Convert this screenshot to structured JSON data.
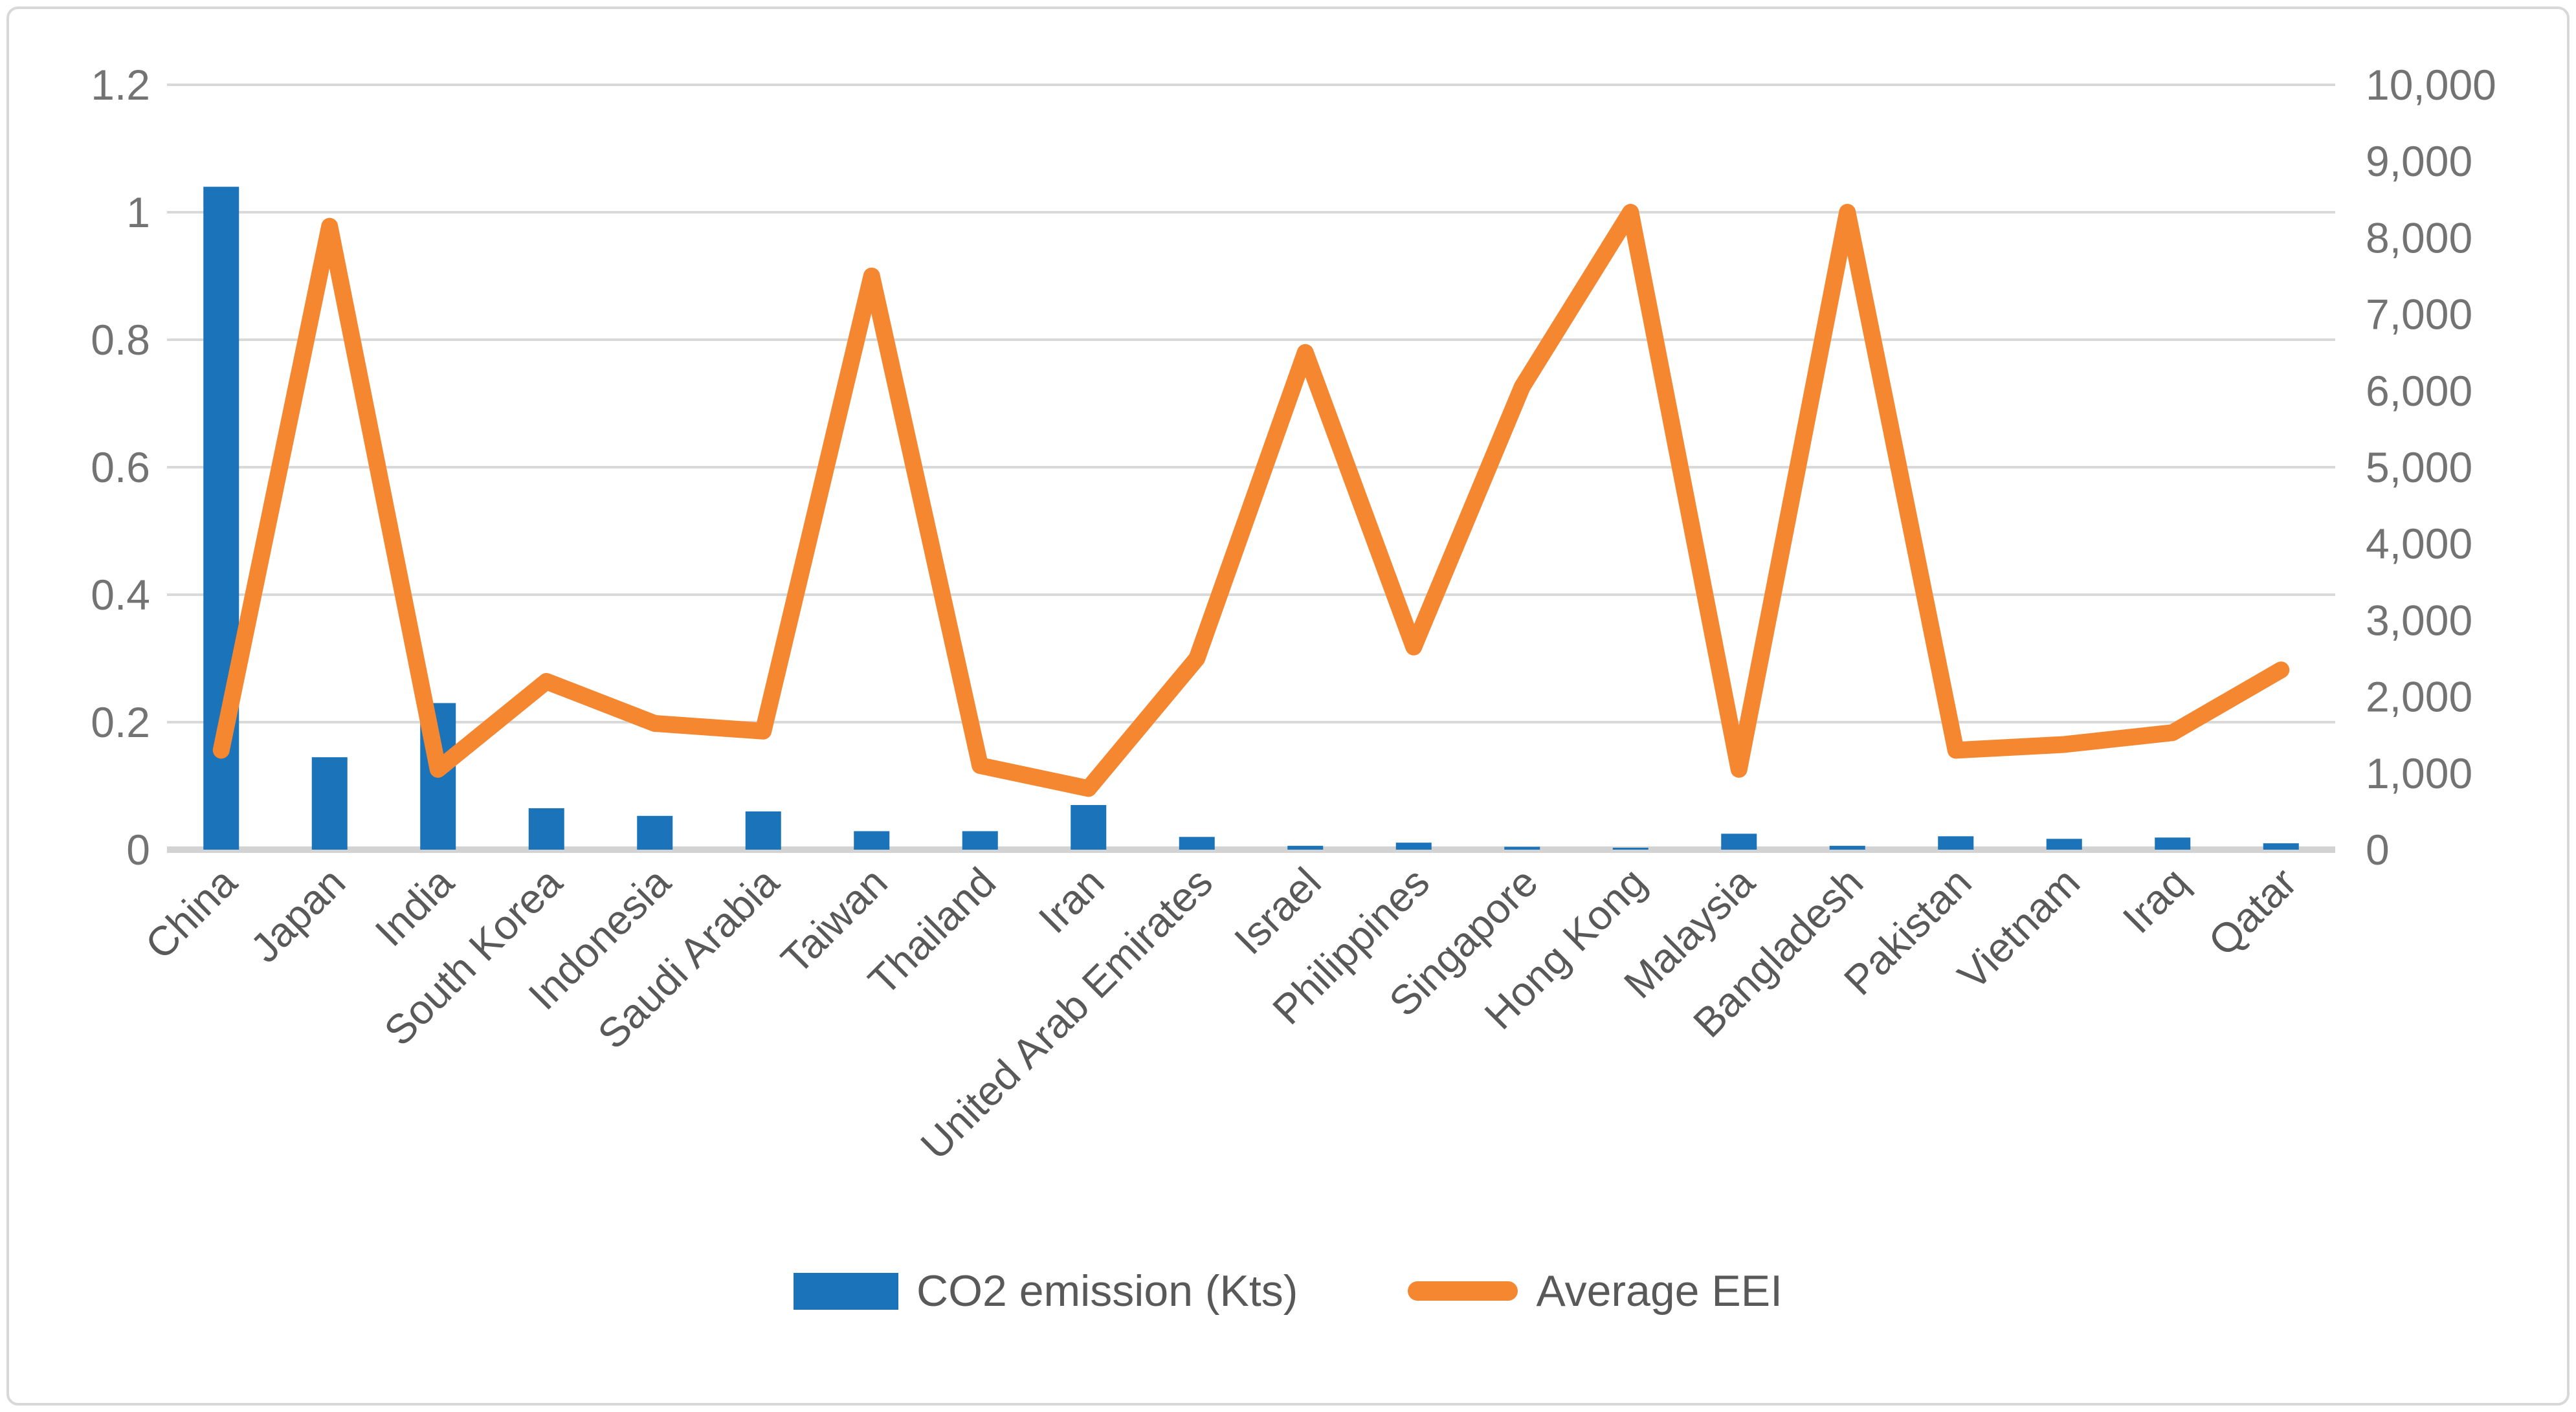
{
  "chart_data": {
    "type": "combo-bar-line",
    "categories": [
      "China",
      "Japan",
      "India",
      "South Korea",
      "Indonesia",
      "Saudi Arabia",
      "Taiwan",
      "Thailand",
      "Iran",
      "United Arab Emirates",
      "Israel",
      "Philippines",
      "Singapore",
      "Hong Kong",
      "Malaysia",
      "Bangladesh",
      "Pakistan",
      "Vietnam",
      "Iraq",
      "Qatar"
    ],
    "series": [
      {
        "name": "CO2 emission (Kts)",
        "type": "bar",
        "axis": "left",
        "color": "#1b73b9",
        "values": [
          1.04,
          0.145,
          0.23,
          0.065,
          0.053,
          0.06,
          0.029,
          0.029,
          0.07,
          0.02,
          0.006,
          0.011,
          0.0045,
          0.003,
          0.025,
          0.006,
          0.021,
          0.017,
          0.019,
          0.01
        ]
      },
      {
        "name": "Average EEI",
        "type": "line",
        "axis": "right",
        "color": "#f68731",
        "values": [
          1300,
          8150,
          1050,
          2200,
          1650,
          1550,
          7500,
          1100,
          800,
          2500,
          6500,
          2650,
          6050,
          8333,
          1050,
          8333,
          1300,
          1375,
          1530,
          2350
        ]
      }
    ],
    "left_axis": {
      "min": 0,
      "max": 1.2,
      "step": 0.2,
      "labels": [
        "0",
        "0.2",
        "0.4",
        "0.6",
        "0.8",
        "1",
        "1.2"
      ]
    },
    "right_axis": {
      "min": 0,
      "max": 10000,
      "step": 1000,
      "labels": [
        "0",
        "1,000",
        "2,000",
        "3,000",
        "4,000",
        "5,000",
        "6,000",
        "7,000",
        "8,000",
        "9,000",
        "10,000"
      ]
    },
    "title": "",
    "xlabel": "",
    "ylabel": "",
    "grid": true,
    "legend_position": "bottom",
    "x_label_rotation_deg": -45
  },
  "legend": {
    "items": [
      {
        "label": "CO2 emission (Kts)",
        "color": "#1b73b9",
        "marker": "bar-swatch"
      },
      {
        "label": "Average EEI",
        "color": "#f68731",
        "marker": "line-swatch"
      }
    ]
  },
  "colors": {
    "bar": "#1b73b9",
    "line": "#f68731",
    "gridline": "#d9d9d9",
    "axis_line": "#d3d3d3",
    "tick_label": "#737373",
    "category_label": "#595959",
    "legend_text": "#595959",
    "figure_border": "#d8d8d8",
    "background": "#ffffff"
  }
}
